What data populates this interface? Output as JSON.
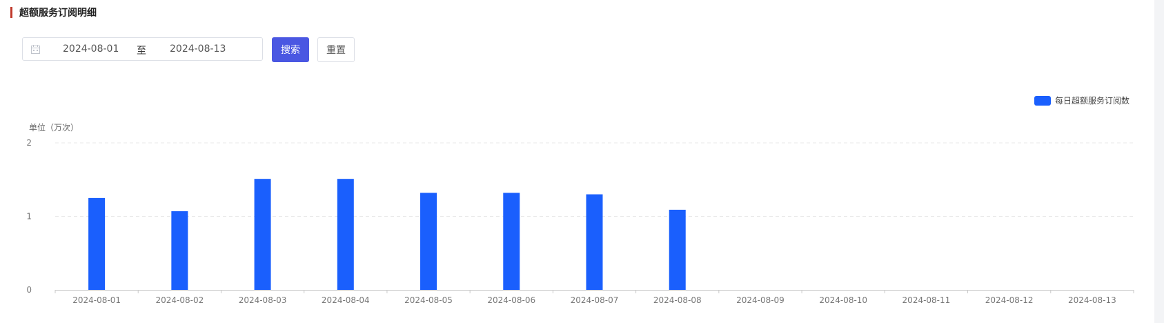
{
  "section": {
    "title": "超额服务订阅明细"
  },
  "filter": {
    "start_date": "2024-08-01",
    "separator": "至",
    "end_date": "2024-08-13",
    "search_label": "搜索",
    "reset_label": "重置"
  },
  "colors": {
    "bar": "#1a5ffd",
    "accent": "#4a57e2",
    "section_bar": "#c0392b"
  },
  "chart_data": {
    "type": "bar",
    "unit_label": "单位（万次）",
    "categories": [
      "2024-08-01",
      "2024-08-02",
      "2024-08-03",
      "2024-08-04",
      "2024-08-05",
      "2024-08-06",
      "2024-08-07",
      "2024-08-08",
      "2024-08-09",
      "2024-08-10",
      "2024-08-11",
      "2024-08-12",
      "2024-08-13"
    ],
    "series": [
      {
        "name": "每日超额服务订阅数",
        "values": [
          1.25,
          1.07,
          1.51,
          1.51,
          1.32,
          1.32,
          1.3,
          1.09,
          0,
          0,
          0,
          0,
          0
        ]
      }
    ],
    "ylim": [
      0,
      2
    ],
    "yticks": [
      0,
      1,
      2
    ],
    "grid": true,
    "legend": "top-right"
  }
}
